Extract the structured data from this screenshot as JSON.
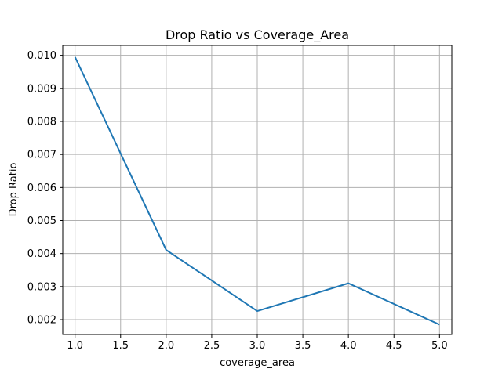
{
  "chart_data": {
    "type": "line",
    "title": "Drop Ratio vs Coverage_Area",
    "xlabel": "coverage_area",
    "ylabel": "Drop Ratio",
    "x": [
      1.0,
      2.0,
      3.0,
      4.0,
      5.0
    ],
    "series": [
      {
        "values": [
          0.00995,
          0.00411,
          0.00226,
          0.0031,
          0.00185
        ],
        "color": "#1f77b4"
      }
    ],
    "xlim": [
      0.865,
      5.135
    ],
    "ylim": [
      0.00155,
      0.0103
    ],
    "xticks": [
      "1.0",
      "1.5",
      "2.0",
      "2.5",
      "3.0",
      "3.5",
      "4.0",
      "4.5",
      "5.0"
    ],
    "xtick_values": [
      1.0,
      1.5,
      2.0,
      2.5,
      3.0,
      3.5,
      4.0,
      4.5,
      5.0
    ],
    "yticks": [
      "0.002",
      "0.003",
      "0.004",
      "0.005",
      "0.006",
      "0.007",
      "0.008",
      "0.009",
      "0.010"
    ],
    "ytick_values": [
      0.002,
      0.003,
      0.004,
      0.005,
      0.006,
      0.007,
      0.008,
      0.009,
      0.01
    ],
    "grid": true,
    "legend": false
  }
}
